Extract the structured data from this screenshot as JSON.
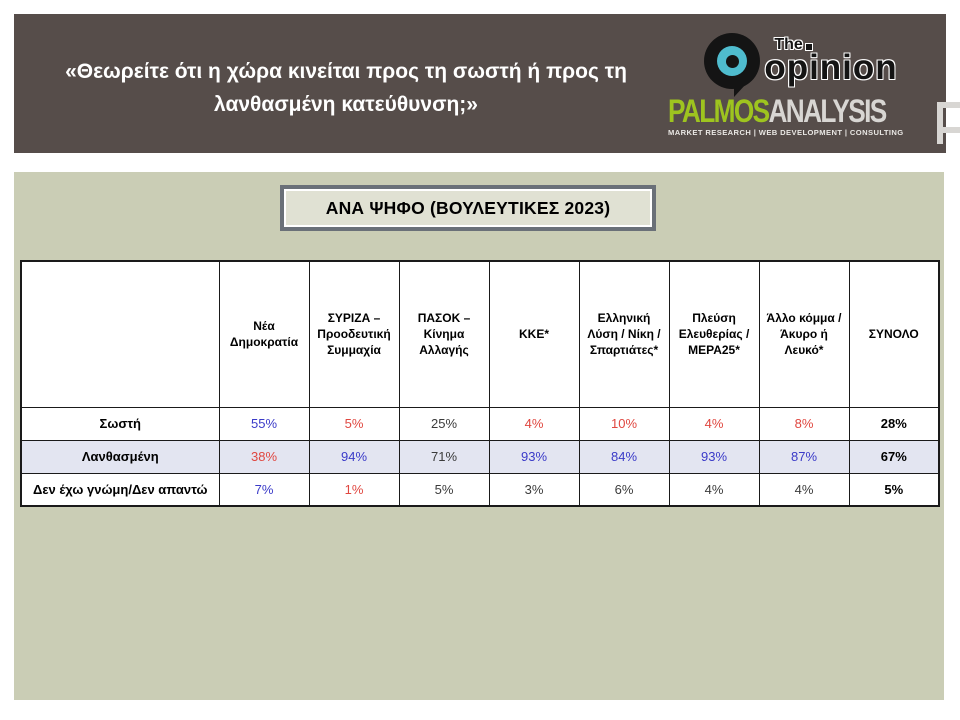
{
  "logos": {
    "opinion": {
      "the": "The",
      "name": "opinion"
    },
    "palmos": {
      "part1": "PALMOS",
      "part2": "ANALYSIS",
      "tagline": "MARKET RESEARCH | WEB DEVELOPMENT | CONSULTING"
    }
  },
  "chart_data": {
    "type": "table",
    "title": "«Θεωρείτε ότι η χώρα κινείται προς τη σωστή ή προς τη λανθασμένη κατεύθυνση;»",
    "subtitle": "ΑΝΑ ΨΗΦΟ (ΒΟΥΛΕΥΤΙΚΕΣ 2023)",
    "row_header": "",
    "columns": [
      "Νέα Δημοκρατία",
      "ΣΥΡΙΖΑ – Προοδευτική Συμμαχία",
      "ΠΑΣΟΚ – Κίνημα Αλλαγής",
      "ΚΚΕ*",
      "Ελληνική Λύση / Νίκη / Σπαρτιάτες*",
      "Πλεύση Ελευθερίας / ΜΕΡΑ25*",
      "Άλλο κόμμα / Άκυρο ή Λευκό*",
      "ΣΥΝΟΛΟ"
    ],
    "rows": [
      {
        "label": "Σωστή",
        "values": [
          "55%",
          "5%",
          "25%",
          "4%",
          "10%",
          "4%",
          "8%",
          "28%"
        ],
        "value_colors": [
          "blue",
          "red",
          "neutral",
          "red",
          "red",
          "red",
          "red",
          "total"
        ]
      },
      {
        "label": "Λανθασμένη",
        "values": [
          "38%",
          "94%",
          "71%",
          "93%",
          "84%",
          "93%",
          "87%",
          "67%"
        ],
        "value_colors": [
          "red",
          "blue",
          "neutral",
          "blue",
          "blue",
          "blue",
          "blue",
          "total"
        ]
      },
      {
        "label": "Δεν έχω γνώμη/Δεν απαντώ",
        "values": [
          "7%",
          "1%",
          "5%",
          "3%",
          "6%",
          "4%",
          "4%",
          "5%"
        ],
        "value_colors": [
          "blue",
          "red",
          "neutral",
          "neutral",
          "neutral",
          "neutral",
          "neutral",
          "total"
        ]
      }
    ],
    "legend_position": "none",
    "grid": true
  },
  "palette": {
    "blue": "#3A3AC8",
    "red": "#E04740",
    "neutral": "#3B3B3B",
    "total": "#000000",
    "band_brown": "#564D4A",
    "panel_green": "#CACDB5",
    "shaded_row": "#E3E5F1",
    "opinion_teal": "#4FBCCE",
    "palmos_green": "#9EC41F"
  }
}
